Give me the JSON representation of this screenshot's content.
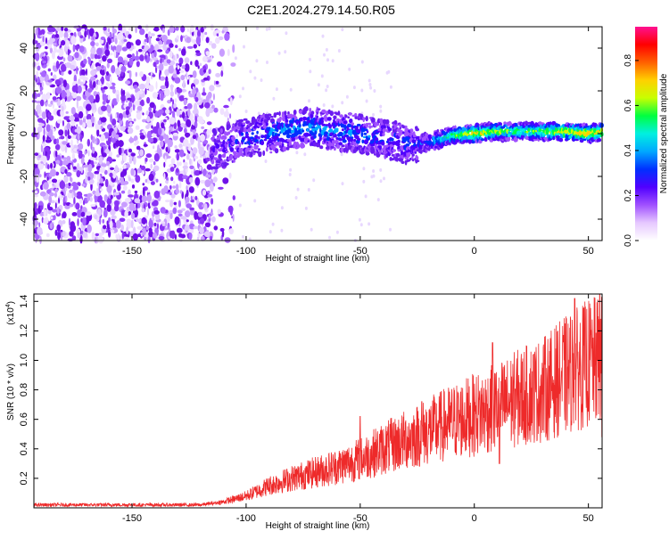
{
  "title": "C2E1.2024.279.14.50.R05",
  "colors": {
    "snr_line": "#ee2a2a",
    "scatter_purple": "#7a1fe6",
    "colormap": [
      "#ffffff",
      "#e6c8ff",
      "#a050ff",
      "#5000ff",
      "#0030ff",
      "#00a8ff",
      "#00f0e0",
      "#00ff40",
      "#c8ff00",
      "#ffd000",
      "#ff6000",
      "#ff0000",
      "#ff1090"
    ]
  },
  "chart_data": [
    {
      "type": "heatmap",
      "xlabel": "Height of straight line (km)",
      "ylabel": "Frequency (Hz)",
      "xlim": [
        -193,
        56
      ],
      "ylim": [
        -50,
        50
      ],
      "xticks": [
        -150,
        -100,
        -50,
        0,
        50
      ],
      "yticks": [
        -40,
        -20,
        0,
        20,
        40
      ],
      "colorbar": {
        "label": "Normalized spectral amplitude",
        "range": [
          0,
          0.95
        ],
        "ticks": [
          0.0,
          0.2,
          0.4,
          0.6,
          0.8
        ]
      },
      "ridge": [
        {
          "x": -115,
          "y": -8,
          "a": 0.18
        },
        {
          "x": -100,
          "y": -2,
          "a": 0.3
        },
        {
          "x": -90,
          "y": 0,
          "a": 0.34
        },
        {
          "x": -80,
          "y": 2,
          "a": 0.38
        },
        {
          "x": -70,
          "y": 3,
          "a": 0.38
        },
        {
          "x": -60,
          "y": 1,
          "a": 0.35
        },
        {
          "x": -50,
          "y": 0,
          "a": 0.35
        },
        {
          "x": -40,
          "y": -2,
          "a": 0.3
        },
        {
          "x": -30,
          "y": -5,
          "a": 0.28
        },
        {
          "x": -20,
          "y": -4,
          "a": 0.35
        },
        {
          "x": -10,
          "y": -1,
          "a": 0.55
        },
        {
          "x": 0,
          "y": 0,
          "a": 0.7
        },
        {
          "x": 10,
          "y": 1,
          "a": 0.6
        },
        {
          "x": 20,
          "y": 1,
          "a": 0.55
        },
        {
          "x": 30,
          "y": 1,
          "a": 0.6
        },
        {
          "x": 40,
          "y": 1,
          "a": 0.7
        },
        {
          "x": 50,
          "y": 0,
          "a": 0.75
        },
        {
          "x": 56,
          "y": 1,
          "a": 0.7
        }
      ]
    },
    {
      "type": "line",
      "xlabel": "Height of straight line (km)",
      "ylabel": "SNR (10 * v/v)",
      "multiplier_label": "(x10",
      "multiplier_exp": "4",
      "multiplier_close": ")",
      "xlim": [
        -193,
        56
      ],
      "ylim": [
        0,
        1.45
      ],
      "xticks": [
        -150,
        -100,
        -50,
        0,
        50
      ],
      "yticks": [
        0.2,
        0.4,
        0.6,
        0.8,
        1.0,
        1.2,
        1.4
      ],
      "series": [
        {
          "color": "#ee2a2a",
          "x": [
            -193,
            -120,
            -110,
            -100,
            -90,
            -80,
            -70,
            -60,
            -50,
            -40,
            -30,
            -20,
            -10,
            0,
            10,
            20,
            30,
            40,
            50,
            56
          ],
          "values": [
            0.02,
            0.02,
            0.04,
            0.08,
            0.15,
            0.2,
            0.24,
            0.28,
            0.33,
            0.4,
            0.46,
            0.52,
            0.58,
            0.63,
            0.68,
            0.75,
            0.8,
            0.9,
            0.98,
            1.0
          ]
        }
      ],
      "spikes": [
        {
          "x": 8,
          "y": 1.12
        },
        {
          "x": 11,
          "y": 0.3
        },
        {
          "x": 44,
          "y": 1.42
        },
        {
          "x": 55,
          "y": 1.45
        },
        {
          "x": 56,
          "y": 0.48
        },
        {
          "x": -50,
          "y": 0.62
        },
        {
          "x": -23,
          "y": 0.72
        }
      ]
    }
  ]
}
